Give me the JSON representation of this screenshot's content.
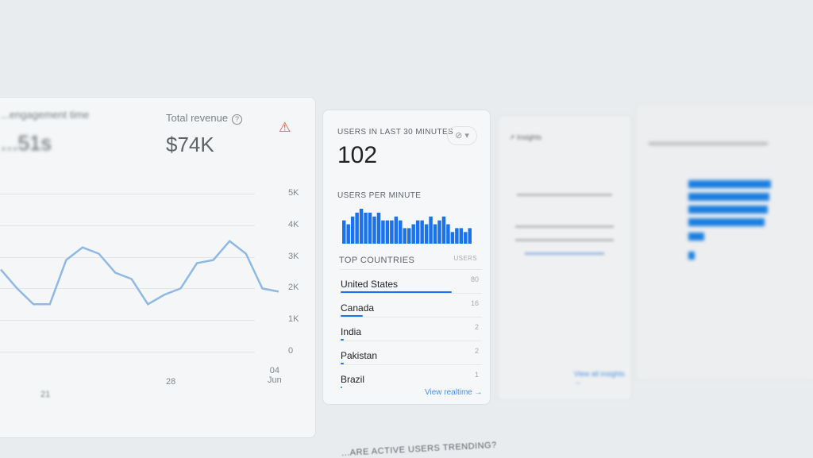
{
  "engagement": {
    "label": "...engagement time",
    "value": "...51s"
  },
  "revenue": {
    "label": "Total revenue",
    "value": "$74K",
    "alert_icon": "warning-triangle-icon",
    "alert_color": "#e8593a",
    "yticks": [
      "5K",
      "4K",
      "3K",
      "2K",
      "1K",
      "0"
    ],
    "xticks": [
      "21",
      "28",
      "04\nJun"
    ],
    "series": [
      2600,
      2000,
      1500,
      1500,
      2900,
      3300,
      3100,
      2500,
      2300,
      1500,
      1800,
      2000,
      2800,
      2900,
      3500,
      3100,
      2000,
      1900
    ]
  },
  "realtime": {
    "title": "USERS IN LAST 30 MINUTES",
    "value": "102",
    "per_minute_label": "USERS PER MINUTE",
    "per_minute": [
      6,
      5,
      7,
      8,
      9,
      8,
      8,
      7,
      8,
      6,
      6,
      6,
      7,
      6,
      4,
      4,
      5,
      6,
      6,
      5,
      7,
      5,
      6,
      7,
      5,
      3,
      4,
      4,
      3,
      4
    ],
    "countries_label": "TOP COUNTRIES",
    "users_label": "USERS",
    "countries": [
      {
        "name": "United States",
        "users": "80"
      },
      {
        "name": "Canada",
        "users": "16"
      },
      {
        "name": "India",
        "users": "2"
      },
      {
        "name": "Pakistan",
        "users": "2"
      },
      {
        "name": "Brazil",
        "users": "1"
      }
    ],
    "view_link": "View realtime →",
    "accent": "#1a73e8"
  },
  "insights": {
    "title": "Insights",
    "view_link": "View all insights →"
  },
  "bottom": {
    "heading": "...ARE ACTIVE USERS TRENDING?"
  }
}
